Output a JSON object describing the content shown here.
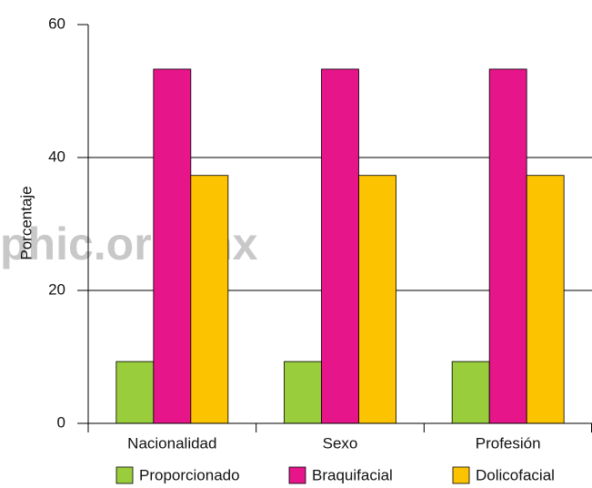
{
  "chart_data": {
    "type": "bar",
    "watermark": "phic.org.mx",
    "ylabel": "Porcentaje",
    "categories": [
      "Nacionalidad",
      "Sexo",
      "Profesión"
    ],
    "series": [
      {
        "name": "Proporcionado",
        "color": "#9acd3c",
        "values": [
          9.3,
          9.3,
          9.3
        ]
      },
      {
        "name": "Braquifacial",
        "color": "#e6158a",
        "values": [
          53.3,
          53.3,
          53.3
        ]
      },
      {
        "name": "Dolicofacial",
        "color": "#fcc300",
        "values": [
          37.3,
          37.3,
          37.3
        ]
      }
    ],
    "ylim": [
      0,
      60
    ],
    "yticks": [
      0,
      20,
      40,
      60
    ],
    "grid": true,
    "legend": "bottom"
  }
}
